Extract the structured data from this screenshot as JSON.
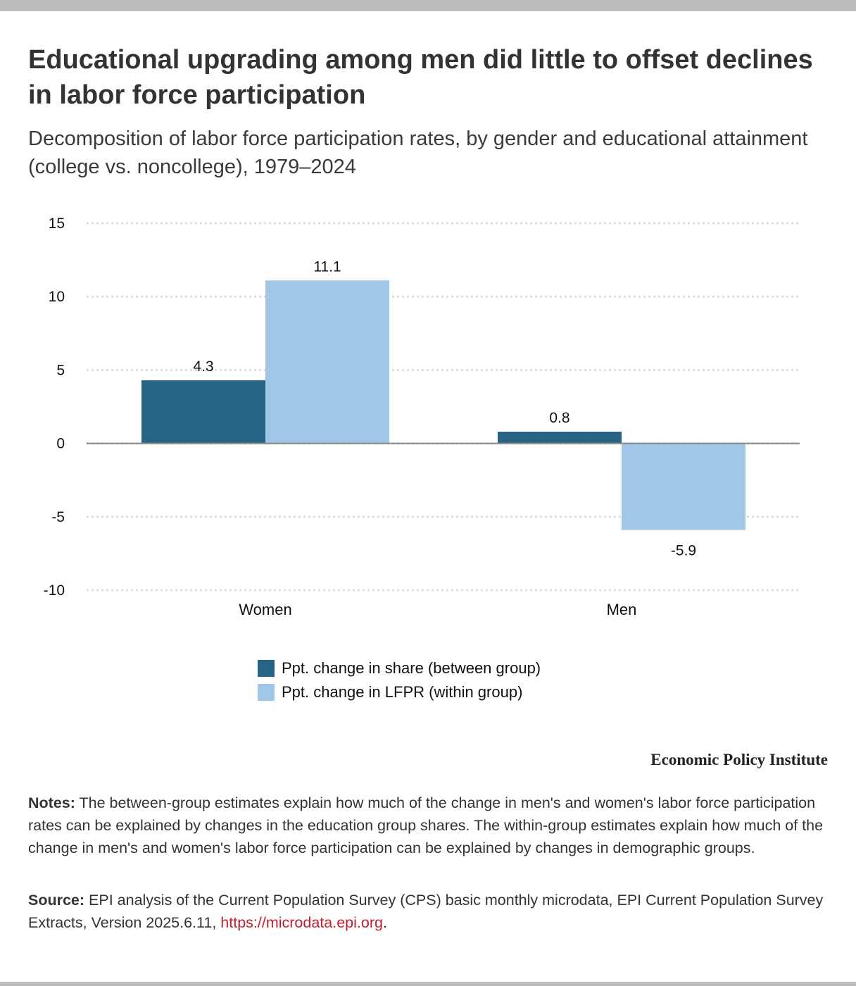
{
  "header": {
    "title": "Educational upgrading among men did little to offset declines in labor force participation",
    "subtitle": "Decomposition of labor force participation rates, by gender and educational attainment (college vs. noncollege), 1979–2024"
  },
  "colors": {
    "between_group": "#266384",
    "within_group": "#a0c6e8",
    "gridline": "#dddddd",
    "zero_line": "#888888",
    "link": "#c0202e",
    "frame_bar": "#bbbbbb"
  },
  "chart_data": {
    "type": "bar",
    "title": "Educational upgrading among men did little to offset declines in labor force participation",
    "subtitle": "Decomposition of labor force participation rates, by gender and educational attainment (college vs. noncollege), 1979–2024",
    "xlabel": "",
    "ylabel": "",
    "categories": [
      "Women",
      "Men"
    ],
    "series": [
      {
        "name": "Ppt. change in share (between group)",
        "values": [
          4.3,
          0.8
        ],
        "labels": [
          "4.3",
          "0.8"
        ]
      },
      {
        "name": "Ppt. change in LFPR (within group)",
        "values": [
          11.1,
          -5.9
        ],
        "labels": [
          "11.1",
          "-5.9"
        ]
      }
    ],
    "ylim": [
      -10,
      15
    ],
    "yticks": [
      15,
      10,
      5,
      0,
      -5,
      -10
    ],
    "ytick_labels": [
      "15",
      "10",
      "5",
      "0",
      "-5",
      "-10"
    ],
    "grid": true,
    "legend": "bottom-center"
  },
  "legend": {
    "items": [
      {
        "label": "Ppt. change in share (between group)"
      },
      {
        "label": "Ppt. change in LFPR (within group)"
      }
    ]
  },
  "brand": "Economic Policy Institute",
  "footer": {
    "notes_label": "Notes:",
    "notes_text": " The between-group estimates explain how much of the change in men's and women's labor force participation rates can be explained by changes in the education group shares. The within-group estimates explain how much of the change in men's and women's labor force participation can be explained by changes in demographic groups.",
    "source_label": "Source:",
    "source_text": " EPI analysis of the Current Population Survey (CPS) basic monthly microdata, EPI Current Population Survey Extracts, Version 2025.6.11, ",
    "source_link": "https://microdata.epi.org",
    "source_end": "."
  }
}
